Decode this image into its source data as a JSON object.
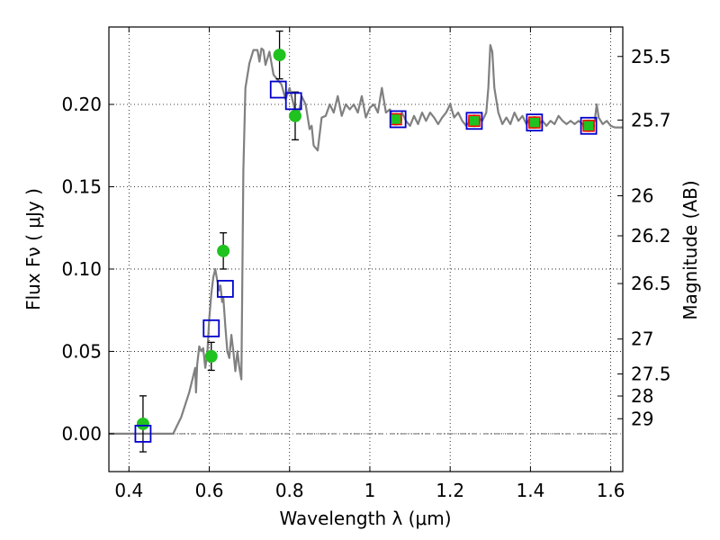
{
  "chart_data": {
    "type": "scatter",
    "xlabel": "Wavelength  λ (μm)",
    "ylabel_main": "Flux  Fν  (  μJy  )",
    "ylabel_right": "Magnitude (AB)",
    "xlim": [
      0.35,
      1.63
    ],
    "ylim": [
      -0.023,
      0.247
    ],
    "grid": true,
    "x_ticks": [
      0.4,
      0.6,
      0.8,
      1.0,
      1.2,
      1.4,
      1.6
    ],
    "x_tick_labels": [
      "0.4",
      "0.6",
      "0.8",
      "1",
      "1.2",
      "1.4",
      "1.6"
    ],
    "y_ticks": [
      0.0,
      0.05,
      0.1,
      0.15,
      0.2
    ],
    "y_tick_labels": [
      "0.00",
      "0.05",
      "0.10",
      "0.15",
      "0.20"
    ],
    "mag_ticks": [
      {
        "label": "25.5",
        "flux": 0.2291
      },
      {
        "label": "25.7",
        "flux": 0.1905
      },
      {
        "label": "26",
        "flux": 0.1445
      },
      {
        "label": "26.2",
        "flux": 0.1202
      },
      {
        "label": "26.5",
        "flux": 0.0912
      },
      {
        "label": "27",
        "flux": 0.0575
      },
      {
        "label": "27.5",
        "flux": 0.0363
      },
      {
        "label": "28",
        "flux": 0.0229
      },
      {
        "label": "29",
        "flux": 0.0091
      }
    ],
    "series": [
      {
        "kind": "model_spectrum",
        "color": "#808080",
        "points": [
          [
            0.35,
            0.0
          ],
          [
            0.5,
            0.0
          ],
          [
            0.51,
            0.0
          ],
          [
            0.53,
            0.01
          ],
          [
            0.55,
            0.025
          ],
          [
            0.56,
            0.035
          ],
          [
            0.565,
            0.04
          ],
          [
            0.567,
            0.025
          ],
          [
            0.57,
            0.042
          ],
          [
            0.575,
            0.053
          ],
          [
            0.58,
            0.05
          ],
          [
            0.585,
            0.052
          ],
          [
            0.59,
            0.04
          ],
          [
            0.595,
            0.048
          ],
          [
            0.6,
            0.07
          ],
          [
            0.605,
            0.085
          ],
          [
            0.61,
            0.095
          ],
          [
            0.615,
            0.1
          ],
          [
            0.62,
            0.093
          ],
          [
            0.625,
            0.087
          ],
          [
            0.628,
            0.09
          ],
          [
            0.632,
            0.08
          ],
          [
            0.635,
            0.083
          ],
          [
            0.64,
            0.065
          ],
          [
            0.645,
            0.05
          ],
          [
            0.65,
            0.046
          ],
          [
            0.655,
            0.06
          ],
          [
            0.66,
            0.05
          ],
          [
            0.665,
            0.038
          ],
          [
            0.67,
            0.05
          ],
          [
            0.675,
            0.04
          ],
          [
            0.68,
            0.033
          ],
          [
            0.685,
            0.16
          ],
          [
            0.69,
            0.21
          ],
          [
            0.7,
            0.225
          ],
          [
            0.71,
            0.233
          ],
          [
            0.72,
            0.233
          ],
          [
            0.725,
            0.226
          ],
          [
            0.73,
            0.234
          ],
          [
            0.735,
            0.233
          ],
          [
            0.74,
            0.224
          ],
          [
            0.75,
            0.232
          ],
          [
            0.76,
            0.218
          ],
          [
            0.77,
            0.215
          ],
          [
            0.78,
            0.212
          ],
          [
            0.79,
            0.203
          ],
          [
            0.8,
            0.21
          ],
          [
            0.81,
            0.2
          ],
          [
            0.82,
            0.19
          ],
          [
            0.83,
            0.205
          ],
          [
            0.84,
            0.2
          ],
          [
            0.85,
            0.185
          ],
          [
            0.855,
            0.187
          ],
          [
            0.86,
            0.175
          ],
          [
            0.87,
            0.172
          ],
          [
            0.88,
            0.192
          ],
          [
            0.89,
            0.193
          ],
          [
            0.9,
            0.2
          ],
          [
            0.91,
            0.195
          ],
          [
            0.92,
            0.205
          ],
          [
            0.93,
            0.193
          ],
          [
            0.94,
            0.2
          ],
          [
            0.95,
            0.197
          ],
          [
            0.96,
            0.2
          ],
          [
            0.97,
            0.195
          ],
          [
            0.98,
            0.205
          ],
          [
            0.99,
            0.192
          ],
          [
            1.0,
            0.198
          ],
          [
            1.01,
            0.2
          ],
          [
            1.02,
            0.195
          ],
          [
            1.03,
            0.21
          ],
          [
            1.04,
            0.195
          ],
          [
            1.05,
            0.197
          ],
          [
            1.06,
            0.19
          ],
          [
            1.07,
            0.188
          ],
          [
            1.08,
            0.195
          ],
          [
            1.09,
            0.19
          ],
          [
            1.1,
            0.187
          ],
          [
            1.11,
            0.193
          ],
          [
            1.12,
            0.188
          ],
          [
            1.13,
            0.195
          ],
          [
            1.14,
            0.19
          ],
          [
            1.15,
            0.195
          ],
          [
            1.16,
            0.192
          ],
          [
            1.17,
            0.188
          ],
          [
            1.18,
            0.192
          ],
          [
            1.19,
            0.195
          ],
          [
            1.2,
            0.2
          ],
          [
            1.21,
            0.192
          ],
          [
            1.22,
            0.195
          ],
          [
            1.23,
            0.19
          ],
          [
            1.24,
            0.187
          ],
          [
            1.25,
            0.19
          ],
          [
            1.26,
            0.188
          ],
          [
            1.27,
            0.192
          ],
          [
            1.28,
            0.19
          ],
          [
            1.29,
            0.195
          ],
          [
            1.295,
            0.21
          ],
          [
            1.3,
            0.236
          ],
          [
            1.305,
            0.232
          ],
          [
            1.31,
            0.21
          ],
          [
            1.32,
            0.195
          ],
          [
            1.33,
            0.188
          ],
          [
            1.34,
            0.192
          ],
          [
            1.35,
            0.188
          ],
          [
            1.36,
            0.195
          ],
          [
            1.37,
            0.19
          ],
          [
            1.38,
            0.193
          ],
          [
            1.39,
            0.188
          ],
          [
            1.4,
            0.192
          ],
          [
            1.41,
            0.19
          ],
          [
            1.42,
            0.188
          ],
          [
            1.43,
            0.19
          ],
          [
            1.44,
            0.187
          ],
          [
            1.45,
            0.19
          ],
          [
            1.46,
            0.188
          ],
          [
            1.47,
            0.193
          ],
          [
            1.48,
            0.19
          ],
          [
            1.49,
            0.188
          ],
          [
            1.5,
            0.19
          ],
          [
            1.51,
            0.188
          ],
          [
            1.52,
            0.19
          ],
          [
            1.53,
            0.188
          ],
          [
            1.54,
            0.185
          ],
          [
            1.55,
            0.187
          ],
          [
            1.56,
            0.19
          ],
          [
            1.565,
            0.2
          ],
          [
            1.57,
            0.192
          ],
          [
            1.58,
            0.188
          ],
          [
            1.59,
            0.19
          ],
          [
            1.6,
            0.187
          ],
          [
            1.61,
            0.186
          ],
          [
            1.62,
            0.186
          ],
          [
            1.63,
            0.186
          ]
        ]
      },
      {
        "kind": "observed",
        "color": "#1fc21f",
        "points": [
          {
            "x": 0.435,
            "y": 0.006,
            "err": 0.017
          },
          {
            "x": 0.605,
            "y": 0.047,
            "err": 0.0085
          },
          {
            "x": 0.635,
            "y": 0.111,
            "err": 0.011
          },
          {
            "x": 0.775,
            "y": 0.23,
            "err": 0.0145
          },
          {
            "x": 0.814,
            "y": 0.193,
            "err": 0.0145
          },
          {
            "x": 1.065,
            "y": 0.191,
            "err": 0.0
          },
          {
            "x": 1.26,
            "y": 0.19,
            "err": 0.0
          },
          {
            "x": 1.41,
            "y": 0.189,
            "err": 0.0
          },
          {
            "x": 1.545,
            "y": 0.187,
            "err": 0.0
          }
        ]
      },
      {
        "kind": "model_band_flux",
        "color": "#0000cc",
        "points": [
          [
            0.435,
            0.0
          ],
          [
            0.605,
            0.064
          ],
          [
            0.64,
            0.088
          ],
          [
            0.772,
            0.209
          ],
          [
            0.81,
            0.202
          ],
          [
            1.07,
            0.191
          ],
          [
            1.26,
            0.19
          ],
          [
            1.41,
            0.189
          ],
          [
            1.545,
            0.187
          ]
        ]
      },
      {
        "kind": "red_markers",
        "color": "#ff0000",
        "points": [
          [
            1.065,
            0.191
          ],
          [
            1.26,
            0.19
          ],
          [
            1.41,
            0.189
          ],
          [
            1.545,
            0.187
          ]
        ]
      }
    ]
  }
}
